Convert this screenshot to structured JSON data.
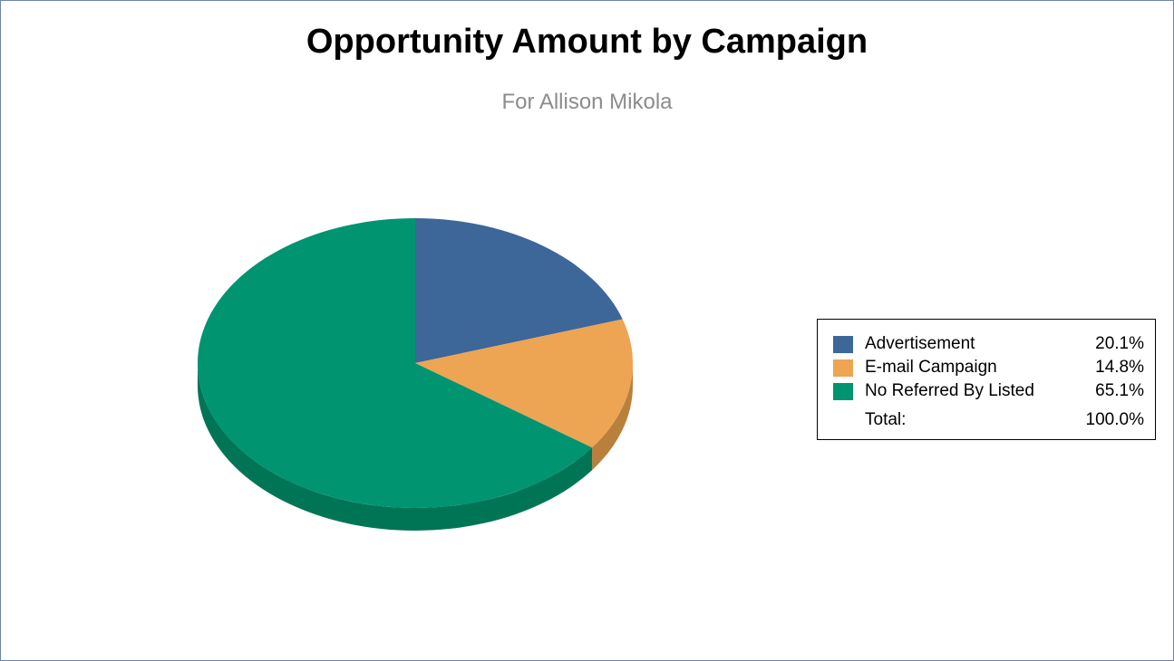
{
  "chart_data": {
    "type": "pie",
    "title": "Opportunity Amount by Campaign",
    "subtitle": "For Allison Mikola",
    "slices": [
      {
        "label": "Advertisement",
        "value": 20.1,
        "display": "20.1%",
        "color": "#3d6699",
        "shade": "#2c4c73"
      },
      {
        "label": "E-mail Campaign",
        "value": 14.8,
        "display": "14.8%",
        "color": "#eda453",
        "shade": "#b9803c"
      },
      {
        "label": "No Referred By Listed",
        "value": 65.1,
        "display": "65.1%",
        "color": "#009470",
        "shade": "#007556"
      }
    ],
    "total": {
      "label": "Total:",
      "display": "100.0%"
    },
    "legend_placement": "right"
  }
}
